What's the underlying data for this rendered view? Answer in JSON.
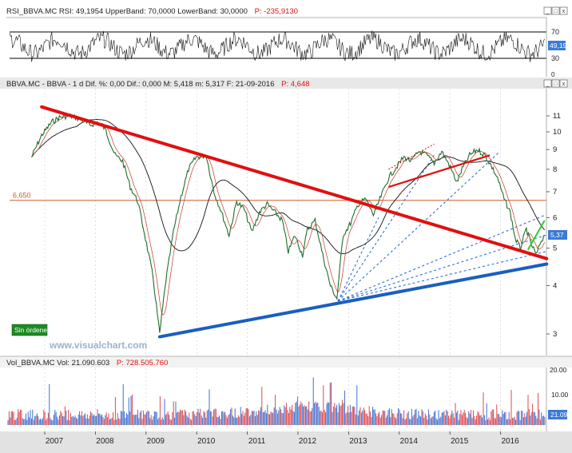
{
  "rsi_panel": {
    "title_prefix": "RSI_BBVA.MC  RSI: 49,1954  UpperBand: 70,0000  LowerBand: 30,0000",
    "title_p": "P: -235,9130",
    "ticks": [
      "70",
      "30",
      "0"
    ],
    "current_label": "49,19",
    "levels": {
      "upper": 70,
      "lower": 30,
      "current": 49.19
    }
  },
  "price_panel": {
    "title_prefix": "BBVA.MC - BBVA - 1 d  Dif. %: 0,00  Dif.: 0,000  M: 5,418  m: 5,317  F: 21-09-2016",
    "title_p": "P: 4,648",
    "hline_label": "6,650",
    "current_label": "5,37",
    "badge_label": "Sin órdenes",
    "watermark": "www.visualchart.com"
  },
  "volume_panel": {
    "title_prefix": "Vol_BBVA.MC  Vol: 21.090.603",
    "title_p": "P: 728.505.760",
    "ticks": [
      "20.00",
      "10.00"
    ],
    "current_label": "21.09"
  },
  "window_controls": [
    "_",
    "□",
    "x"
  ],
  "chart_data": {
    "type": "line",
    "symbol": "BBVA.MC",
    "x_ticks": [
      "2007",
      "2008",
      "2009",
      "2010",
      "2011",
      "2012",
      "2013",
      "2014",
      "2015",
      "2016"
    ],
    "y_ticks": [
      3,
      4,
      5,
      6,
      7,
      8,
      9,
      10,
      11
    ],
    "y_scale": "log",
    "ylim": [
      2.6,
      12
    ],
    "price_series": [
      {
        "date": "2006.55",
        "value": 8.6
      },
      {
        "date": "2006.75",
        "value": 9.8
      },
      {
        "date": "2006.95",
        "value": 10.6
      },
      {
        "date": "2007.1",
        "value": 10.9
      },
      {
        "date": "2007.3",
        "value": 11.0
      },
      {
        "date": "2007.5",
        "value": 10.8
      },
      {
        "date": "2007.7",
        "value": 10.4
      },
      {
        "date": "2007.85",
        "value": 10.6
      },
      {
        "date": "2008.0",
        "value": 10.2
      },
      {
        "date": "2008.2",
        "value": 8.7
      },
      {
        "date": "2008.35",
        "value": 8.4
      },
      {
        "date": "2008.5",
        "value": 7.2
      },
      {
        "date": "2008.65",
        "value": 6.6
      },
      {
        "date": "2008.8",
        "value": 5.3
      },
      {
        "date": "2008.95",
        "value": 4.2
      },
      {
        "date": "2009.08",
        "value": 3.0
      },
      {
        "date": "2009.2",
        "value": 4.1
      },
      {
        "date": "2009.35",
        "value": 5.5
      },
      {
        "date": "2009.5",
        "value": 6.8
      },
      {
        "date": "2009.65",
        "value": 8.0
      },
      {
        "date": "2009.8",
        "value": 8.6
      },
      {
        "date": "2010.0",
        "value": 8.7
      },
      {
        "date": "2010.15",
        "value": 7.0
      },
      {
        "date": "2010.3",
        "value": 6.2
      },
      {
        "date": "2010.45",
        "value": 5.4
      },
      {
        "date": "2010.6",
        "value": 6.6
      },
      {
        "date": "2010.75",
        "value": 6.3
      },
      {
        "date": "2010.9",
        "value": 5.5
      },
      {
        "date": "2011.05",
        "value": 6.2
      },
      {
        "date": "2011.2",
        "value": 6.5
      },
      {
        "date": "2011.35",
        "value": 6.2
      },
      {
        "date": "2011.5",
        "value": 5.9
      },
      {
        "date": "2011.62",
        "value": 4.9
      },
      {
        "date": "2011.75",
        "value": 5.4
      },
      {
        "date": "2011.9",
        "value": 4.8
      },
      {
        "date": "2012.0",
        "value": 5.6
      },
      {
        "date": "2012.15",
        "value": 5.9
      },
      {
        "date": "2012.3",
        "value": 4.8
      },
      {
        "date": "2012.45",
        "value": 4.0
      },
      {
        "date": "2012.58",
        "value": 3.7
      },
      {
        "date": "2012.7",
        "value": 5.4
      },
      {
        "date": "2012.85",
        "value": 5.8
      },
      {
        "date": "2013.0",
        "value": 6.5
      },
      {
        "date": "2013.15",
        "value": 6.7
      },
      {
        "date": "2013.3",
        "value": 6.1
      },
      {
        "date": "2013.45",
        "value": 6.8
      },
      {
        "date": "2013.6",
        "value": 7.6
      },
      {
        "date": "2013.75",
        "value": 8.1
      },
      {
        "date": "2013.9",
        "value": 8.6
      },
      {
        "date": "2014.05",
        "value": 8.4
      },
      {
        "date": "2014.2",
        "value": 8.9
      },
      {
        "date": "2014.35",
        "value": 8.7
      },
      {
        "date": "2014.5",
        "value": 8.3
      },
      {
        "date": "2014.65",
        "value": 8.9
      },
      {
        "date": "2014.8",
        "value": 8.2
      },
      {
        "date": "2014.95",
        "value": 7.4
      },
      {
        "date": "2015.05",
        "value": 8.0
      },
      {
        "date": "2015.2",
        "value": 8.7
      },
      {
        "date": "2015.35",
        "value": 9.0
      },
      {
        "date": "2015.5",
        "value": 8.7
      },
      {
        "date": "2015.62",
        "value": 8.2
      },
      {
        "date": "2015.75",
        "value": 7.6
      },
      {
        "date": "2015.88",
        "value": 6.7
      },
      {
        "date": "2016.0",
        "value": 6.2
      },
      {
        "date": "2016.1",
        "value": 5.3
      },
      {
        "date": "2016.2",
        "value": 5.0
      },
      {
        "date": "2016.32",
        "value": 5.6
      },
      {
        "date": "2016.42",
        "value": 5.1
      },
      {
        "date": "2016.52",
        "value": 4.8
      },
      {
        "date": "2016.6",
        "value": 5.2
      },
      {
        "date": "2016.68",
        "value": 5.4
      }
    ],
    "trendlines": [
      {
        "color": "#e01010",
        "from": {
          "date": "2006.75",
          "value": 11.6
        },
        "to": {
          "date": "2016.72",
          "value": 4.7
        }
      },
      {
        "color": "#1a5fc0",
        "from": {
          "date": "2009.08",
          "value": 2.95
        },
        "to": {
          "date": "2016.72",
          "value": 4.55
        }
      }
    ],
    "hline": {
      "value": 6.65,
      "label": "6,650",
      "color": "#d4582c"
    }
  }
}
